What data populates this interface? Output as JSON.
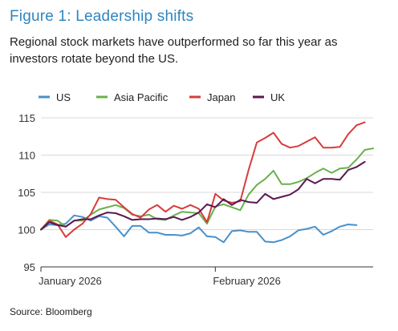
{
  "figure": {
    "title": "Figure 1: Leadership shifts",
    "subtitle": "Regional stock markets have outperformed so far this year as investors rotate beyond the US.",
    "source": "Source: Bloomberg"
  },
  "chart_data": {
    "type": "line",
    "title": "Figure 1: Leadership shifts",
    "xlabel": "",
    "ylabel": "",
    "ylim": [
      95,
      115
    ],
    "yticks": [
      95,
      100,
      105,
      110,
      115
    ],
    "xtick_labels": [
      {
        "label": "January 2026",
        "index": 0
      },
      {
        "label": "February 2026",
        "index": 21
      }
    ],
    "grid": "horizontal",
    "legend": "top",
    "series": [
      {
        "name": "US",
        "color": "#4a90c8",
        "values": [
          100.0,
          100.7,
          100.6,
          100.8,
          101.9,
          101.7,
          101.2,
          101.8,
          101.6,
          100.4,
          99.1,
          100.5,
          100.5,
          99.6,
          99.6,
          99.3,
          99.3,
          99.2,
          99.5,
          100.3,
          99.1,
          99.0,
          98.3,
          99.8,
          99.9,
          99.7,
          99.7,
          98.4,
          98.3,
          98.6,
          99.1,
          99.9,
          100.1,
          100.4,
          99.3,
          99.8,
          100.4,
          100.7,
          100.6
        ]
      },
      {
        "name": "Asia Pacific",
        "color": "#6ab04c",
        "values": [
          100.0,
          101.3,
          101.2,
          100.4,
          101.2,
          101.2,
          102.0,
          102.7,
          103.0,
          103.3,
          102.9,
          102.0,
          101.8,
          102.0,
          101.4,
          101.3,
          101.9,
          102.4,
          102.3,
          102.2,
          100.8,
          103.1,
          103.4,
          103.0,
          102.6,
          104.7,
          106.0,
          106.8,
          107.9,
          106.1,
          106.1,
          106.4,
          106.9,
          107.6,
          108.2,
          107.6,
          108.2,
          108.3,
          109.4,
          110.7,
          110.9
        ]
      },
      {
        "name": "Japan",
        "color": "#d93b3b",
        "values": [
          100.0,
          101.2,
          100.7,
          99.0,
          100.0,
          100.8,
          102.1,
          104.3,
          104.1,
          104.0,
          103.0,
          102.1,
          101.6,
          102.7,
          103.3,
          102.4,
          103.2,
          102.8,
          103.3,
          102.8,
          101.0,
          104.8,
          103.9,
          103.6,
          103.8,
          108.0,
          111.7,
          112.3,
          113.0,
          111.5,
          111.0,
          111.2,
          111.8,
          112.4,
          111.0,
          111.0,
          111.1,
          112.8,
          114.0,
          114.4
        ]
      },
      {
        "name": "UK",
        "color": "#5a1750",
        "values": [
          100.0,
          101.0,
          100.6,
          100.4,
          101.2,
          101.4,
          101.4,
          101.9,
          102.3,
          102.2,
          101.8,
          101.3,
          101.4,
          101.4,
          101.5,
          101.4,
          101.7,
          101.3,
          101.7,
          102.3,
          103.4,
          103.0,
          104.1,
          103.3,
          104.0,
          103.7,
          103.6,
          104.8,
          104.1,
          104.4,
          104.7,
          105.4,
          106.8,
          106.2,
          106.8,
          106.8,
          106.7,
          108.0,
          108.4,
          109.1
        ]
      }
    ]
  }
}
